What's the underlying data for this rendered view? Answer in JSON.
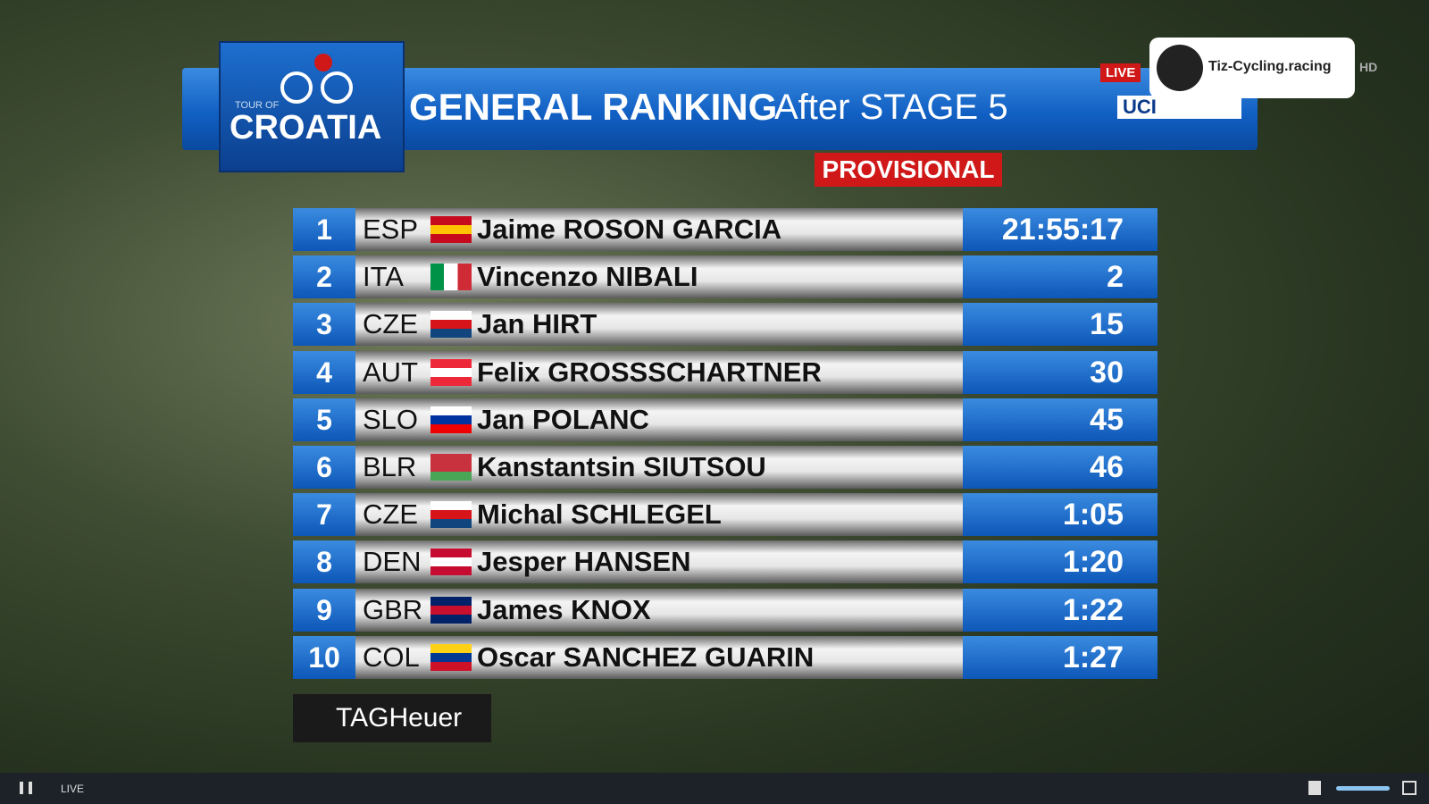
{
  "header": {
    "event_line1": "TOUR OF",
    "event_line2": "CROATIA",
    "title": "GENERAL RANKING",
    "subtitle": "After STAGE 5",
    "live_badge": "LIVE",
    "watermark": "Tiz-Cycling.racing",
    "quality": "HD",
    "uci": "UCI",
    "status": "PROVISIONAL"
  },
  "table": {
    "rows": [
      [
        "1",
        "ESP",
        "Jaime ROSON GARCIA",
        "21:55:17"
      ],
      [
        "2",
        "ITA",
        "Vincenzo NIBALI",
        "2"
      ],
      [
        "3",
        "CZE",
        "Jan HIRT",
        "15"
      ],
      [
        "4",
        "AUT",
        "Felix GROSSSCHARTNER",
        "30"
      ],
      [
        "5",
        "SLO",
        "Jan POLANC",
        "45"
      ],
      [
        "6",
        "BLR",
        "Kanstantsin SIUTSOU",
        "46"
      ],
      [
        "7",
        "CZE",
        "Michal SCHLEGEL",
        "1:05"
      ],
      [
        "8",
        "DEN",
        "Jesper HANSEN",
        "1:20"
      ],
      [
        "9",
        "GBR",
        "James KNOX",
        "1:22"
      ],
      [
        "10",
        "COL",
        "Oscar SANCHEZ GUARIN",
        "1:27"
      ]
    ]
  },
  "sponsor": "TAGHeuer",
  "player": {
    "live": "LIVE"
  }
}
